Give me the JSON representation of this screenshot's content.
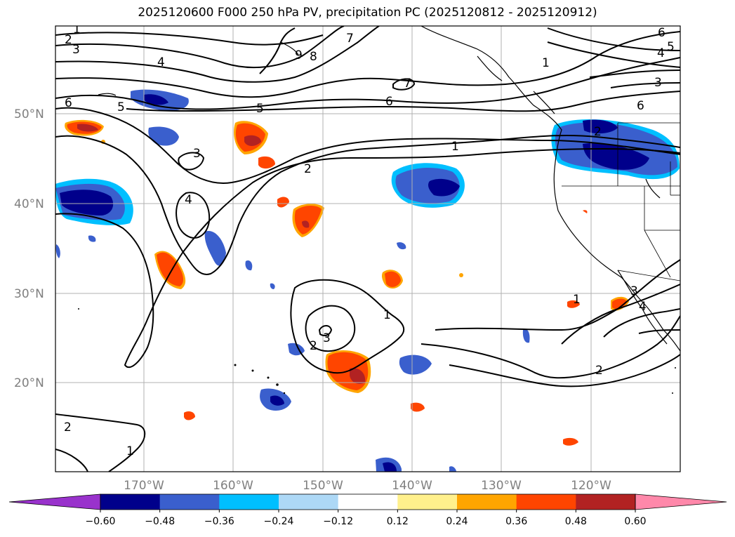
{
  "title": "2025120600 F000 250 hPa PV, precipitation PC (2025120812 - 2025120912)",
  "lat_labels": [
    "50°N",
    "40°N",
    "30°N",
    "20°N"
  ],
  "lon_labels": [
    "170°W",
    "160°W",
    "150°W",
    "140°W",
    "130°W",
    "120°W"
  ],
  "contour_labels": [
    "1",
    "2",
    "3",
    "4",
    "5",
    "6",
    "7",
    "8",
    "9",
    "6",
    "5",
    "4",
    "7",
    "6",
    "5",
    "6",
    "3",
    "3",
    "4",
    "2",
    "1",
    "1",
    "2",
    "3",
    "1",
    "2",
    "3",
    "4",
    "1",
    "2",
    "1",
    "2"
  ],
  "colorbar": {
    "tick_labels": [
      "−0.60",
      "−0.48",
      "−0.36",
      "−0.24",
      "−0.12",
      "0.12",
      "0.24",
      "0.36",
      "0.48",
      "0.60"
    ],
    "colors": [
      "#9932cc",
      "#00008b",
      "#3a5fcd",
      "#00bfff",
      "#add8f6",
      "#ffffff",
      "#fff08c",
      "#ffa500",
      "#ff4500",
      "#b22222",
      "#ff88aa"
    ]
  }
}
